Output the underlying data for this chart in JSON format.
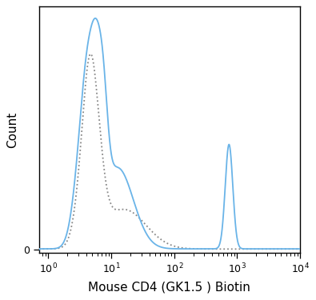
{
  "xlabel": "Mouse CD4 (GK1.5 ) Biotin",
  "ylabel": "Count",
  "xlim_min_log": -0.15,
  "xlim_max_log": 4.0,
  "solid_color": "#6ab4e8",
  "dashed_color": "#888888",
  "background_color": "#ffffff",
  "linewidth_solid": 1.3,
  "linewidth_dashed": 1.3
}
